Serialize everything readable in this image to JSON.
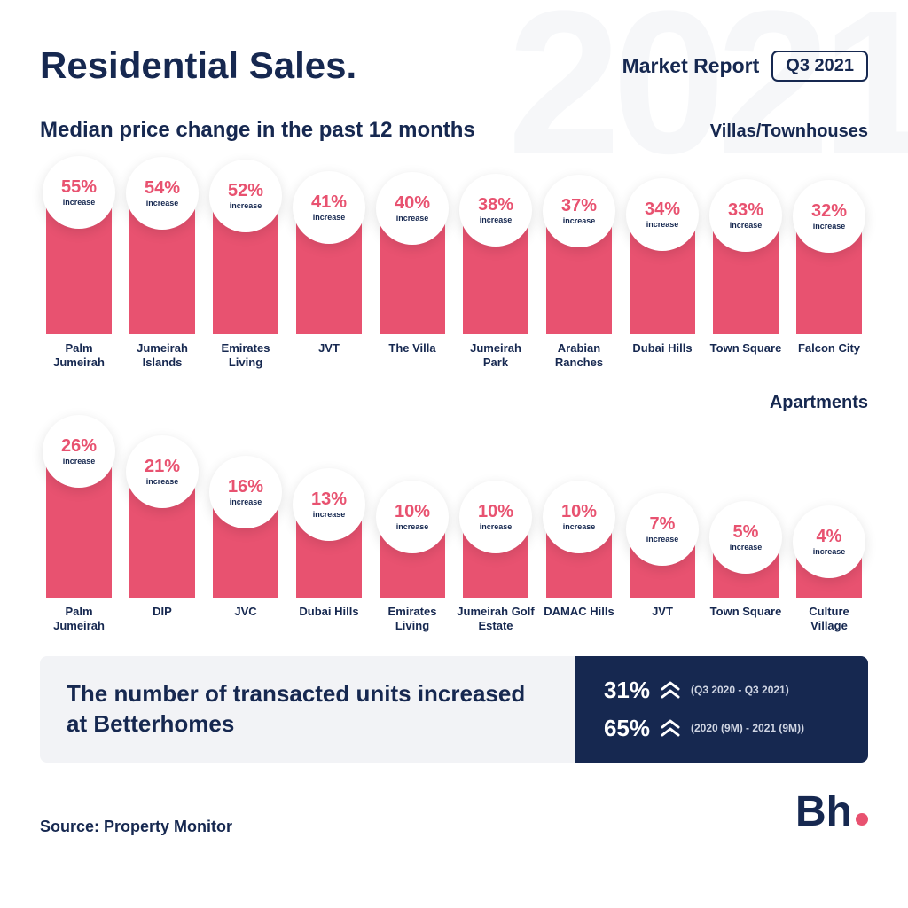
{
  "colors": {
    "accent": "#e85270",
    "navy": "#162850",
    "background": "#ffffff",
    "callout_light": "#f2f3f6",
    "watermark": "#f6f7f9"
  },
  "watermark_text": "2021",
  "header": {
    "title": "Residential Sales.",
    "market_report": "Market Report",
    "period": "Q3 2021"
  },
  "subtitle": "Median price change in the past 12 months",
  "chart1": {
    "type": "bar",
    "category": "Villas/Townhouses",
    "max_value": 55,
    "bar_color": "#e85270",
    "circle_bg": "#ffffff",
    "pct_color": "#e85270",
    "label_color": "#162850",
    "increase_word": "increase",
    "items": [
      {
        "label": "Palm Jumeirah",
        "value": 55
      },
      {
        "label": "Jumeirah Islands",
        "value": 54
      },
      {
        "label": "Emirates Living",
        "value": 52
      },
      {
        "label": "JVT",
        "value": 41
      },
      {
        "label": "The Villa",
        "value": 40
      },
      {
        "label": "Jumeirah Park",
        "value": 38
      },
      {
        "label": "Arabian Ranches",
        "value": 37
      },
      {
        "label": "Dubai Hills",
        "value": 34
      },
      {
        "label": "Town Square",
        "value": 33
      },
      {
        "label": "Falcon City",
        "value": 32
      }
    ]
  },
  "chart2": {
    "type": "bar",
    "category": "Apartments",
    "max_value": 26,
    "bar_color": "#e85270",
    "circle_bg": "#ffffff",
    "pct_color": "#e85270",
    "label_color": "#162850",
    "increase_word": "increase",
    "items": [
      {
        "label": "Palm Jumeirah",
        "value": 26
      },
      {
        "label": "DIP",
        "value": 21
      },
      {
        "label": "JVC",
        "value": 16
      },
      {
        "label": "Dubai Hills",
        "value": 13
      },
      {
        "label": "Emirates Living",
        "value": 10
      },
      {
        "label": "Jumeirah Golf Estate",
        "value": 10
      },
      {
        "label": "DAMAC Hills",
        "value": 10
      },
      {
        "label": "JVT",
        "value": 7
      },
      {
        "label": "Town Square",
        "value": 5
      },
      {
        "label": "Culture Village",
        "value": 4
      }
    ]
  },
  "callout": {
    "text": "The number of transacted units increased at Betterhomes",
    "stats": [
      {
        "pct": "31%",
        "period": "(Q3 2020 - Q3 2021)"
      },
      {
        "pct": "65%",
        "period": "(2020 (9M) - 2021 (9M))"
      }
    ]
  },
  "source": "Source: Property Monitor",
  "logo_text": "Bh"
}
